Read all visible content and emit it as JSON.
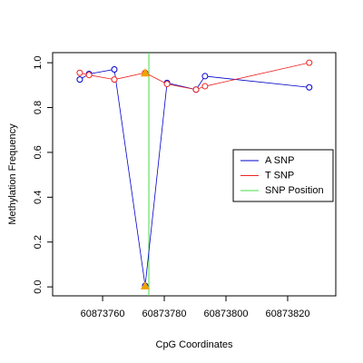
{
  "chart_data": {
    "type": "line",
    "x_label": "CpG Coordinates",
    "y_label": "Methylation Frequency",
    "xlim": [
      60873743.8,
      60873835.6
    ],
    "ylim": [
      -0.04,
      1.045
    ],
    "xticks": [
      60873760,
      60873780,
      60873800,
      60873820
    ],
    "yticks": [
      {
        "value": 0,
        "label": "0.0"
      },
      0.2,
      0.4,
      0.6,
      0.8,
      {
        "value": 1,
        "label": "1.0"
      }
    ],
    "x": [
      60873752.6,
      60873755.6,
      60873763.8,
      60873773.8,
      60873780.9,
      60873790.3,
      60873793.2,
      60873827
    ],
    "series": [
      {
        "name": "A SNP",
        "color": "#0000cc",
        "values": [
          0.925,
          0.95,
          0.97,
          0.005,
          0.91,
          0.88,
          0.94,
          0.89
        ]
      },
      {
        "name": "T SNP",
        "color": "#ee2222",
        "values": [
          0.955,
          0.945,
          0.925,
          0.955,
          0.905,
          0.88,
          0.895,
          1.0
        ]
      }
    ],
    "snp_position": {
      "name": "SNP Position",
      "color": "#44dd44",
      "value": 60873775
    },
    "snp_markers": {
      "color": "#f0a000",
      "x": [
        60873773.8,
        60873773.8
      ],
      "values": [
        0.955,
        0.005
      ]
    },
    "legend": "right"
  }
}
